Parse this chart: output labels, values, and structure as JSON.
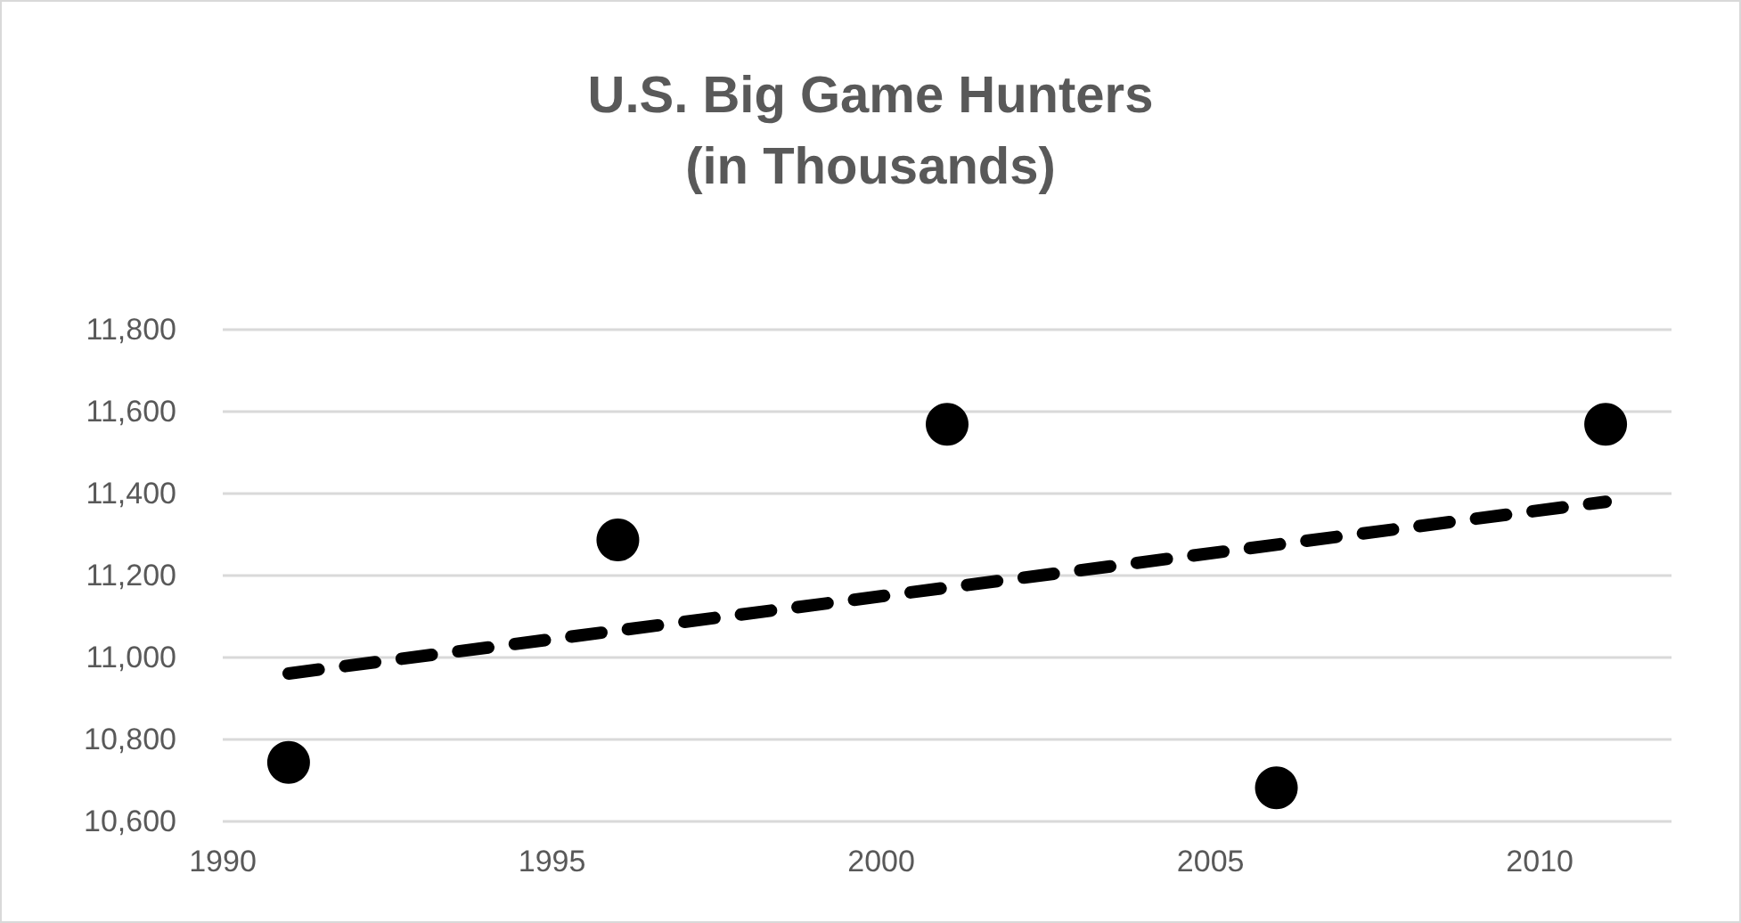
{
  "chart_data": {
    "type": "scatter",
    "title": "U.S. Big Game Hunters\n(in Thousands)",
    "series": [
      {
        "color": "#000000",
        "marker": "circle",
        "x": [
          1991,
          1996,
          2001,
          2006,
          2011
        ],
        "values": [
          10744,
          11287,
          11569,
          10682,
          11569
        ]
      },
      {
        "type": "line",
        "color": "#000000",
        "marker": "none",
        "line_style": "dashed",
        "x": [
          1991,
          2011
        ],
        "values": [
          10961,
          11380
        ]
      }
    ],
    "xlim": [
      1990,
      2012
    ],
    "xticks": [
      1990,
      1995,
      2000,
      2005,
      2010
    ],
    "ylim": [
      10600,
      11800
    ],
    "yticks": [
      {
        "value": 10600,
        "label": "10,600"
      },
      {
        "value": 10800,
        "label": "10,800"
      },
      {
        "value": 11000,
        "label": "11,000"
      },
      {
        "value": 11200,
        "label": "11,200"
      },
      {
        "value": 11400,
        "label": "11,400"
      },
      {
        "value": 11600,
        "label": "11,600"
      },
      {
        "value": 11800,
        "label": "11,800"
      }
    ],
    "grid": "y"
  }
}
